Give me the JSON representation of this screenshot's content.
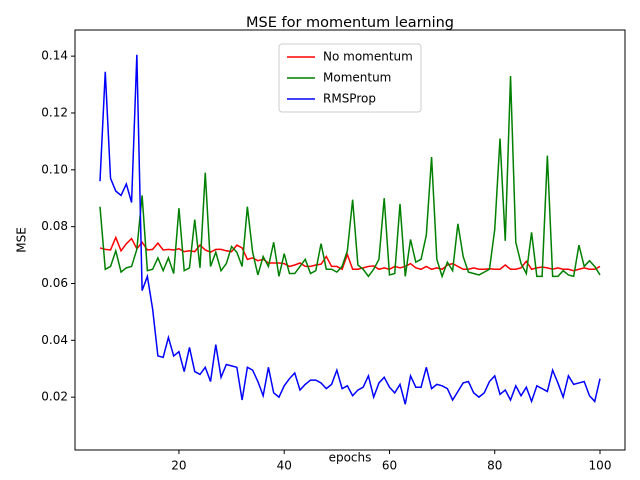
{
  "chart_data": {
    "type": "line",
    "title": "MSE for momentum learning",
    "xlabel": "epochs",
    "ylabel": "MSE",
    "x": [
      5,
      6,
      7,
      8,
      9,
      10,
      11,
      12,
      13,
      14,
      15,
      16,
      17,
      18,
      19,
      20,
      21,
      22,
      23,
      24,
      25,
      26,
      27,
      28,
      29,
      30,
      31,
      32,
      33,
      34,
      35,
      36,
      37,
      38,
      39,
      40,
      41,
      42,
      43,
      44,
      45,
      46,
      47,
      48,
      49,
      50,
      51,
      52,
      53,
      54,
      55,
      56,
      57,
      58,
      59,
      60,
      61,
      62,
      63,
      64,
      65,
      66,
      67,
      68,
      69,
      70,
      71,
      72,
      73,
      74,
      75,
      76,
      77,
      78,
      79,
      80,
      81,
      82,
      83,
      84,
      85,
      86,
      87,
      88,
      89,
      90,
      91,
      92,
      93,
      94,
      95,
      96,
      97,
      98,
      99,
      100
    ],
    "series": [
      {
        "name": "No momentum",
        "color": "#ff0000",
        "values": [
          0.0725,
          0.072,
          0.0718,
          0.0762,
          0.0715,
          0.074,
          0.0758,
          0.0722,
          0.0745,
          0.0718,
          0.072,
          0.0742,
          0.0718,
          0.072,
          0.0718,
          0.0722,
          0.0712,
          0.0715,
          0.0712,
          0.0735,
          0.0718,
          0.071,
          0.072,
          0.072,
          0.0715,
          0.0712,
          0.0735,
          0.0725,
          0.0685,
          0.069,
          0.068,
          0.0685,
          0.0672,
          0.0672,
          0.0672,
          0.067,
          0.066,
          0.0665,
          0.0672,
          0.066,
          0.066,
          0.0665,
          0.0668,
          0.0695,
          0.066,
          0.066,
          0.065,
          0.0702,
          0.065,
          0.065,
          0.0655,
          0.066,
          0.0662,
          0.065,
          0.0655,
          0.065,
          0.066,
          0.0655,
          0.066,
          0.067,
          0.0655,
          0.065,
          0.066,
          0.065,
          0.0655,
          0.065,
          0.0665,
          0.067,
          0.066,
          0.065,
          0.065,
          0.0655,
          0.065,
          0.065,
          0.0652,
          0.065,
          0.065,
          0.0665,
          0.065,
          0.065,
          0.0655,
          0.0678,
          0.065,
          0.0655,
          0.0658,
          0.0655,
          0.065,
          0.0655,
          0.065,
          0.065,
          0.0645,
          0.065,
          0.0655,
          0.065,
          0.065,
          0.066
        ]
      },
      {
        "name": "Momentum",
        "color": "#008000",
        "values": [
          0.087,
          0.065,
          0.066,
          0.0715,
          0.064,
          0.0655,
          0.066,
          0.072,
          0.091,
          0.0645,
          0.065,
          0.069,
          0.0645,
          0.069,
          0.0635,
          0.0865,
          0.0645,
          0.0655,
          0.0825,
          0.0655,
          0.099,
          0.066,
          0.071,
          0.0645,
          0.067,
          0.073,
          0.071,
          0.066,
          0.087,
          0.071,
          0.063,
          0.0695,
          0.066,
          0.0745,
          0.0625,
          0.0705,
          0.0635,
          0.0635,
          0.066,
          0.0685,
          0.0635,
          0.0645,
          0.074,
          0.065,
          0.065,
          0.064,
          0.066,
          0.0715,
          0.0895,
          0.0665,
          0.065,
          0.0625,
          0.065,
          0.0685,
          0.09,
          0.063,
          0.0635,
          0.088,
          0.0625,
          0.0755,
          0.0675,
          0.0685,
          0.077,
          0.1045,
          0.0685,
          0.0625,
          0.0675,
          0.0645,
          0.081,
          0.0695,
          0.064,
          0.0635,
          0.063,
          0.064,
          0.065,
          0.079,
          0.111,
          0.075,
          0.133,
          0.0745,
          0.067,
          0.0635,
          0.078,
          0.0625,
          0.0625,
          0.105,
          0.0625,
          0.0625,
          0.0645,
          0.063,
          0.0625,
          0.0735,
          0.066,
          0.068,
          0.066,
          0.063
        ]
      },
      {
        "name": "RMSProp",
        "color": "#0000ff",
        "values": [
          0.096,
          0.1345,
          0.097,
          0.0925,
          0.091,
          0.095,
          0.0885,
          0.1405,
          0.0575,
          0.0625,
          0.051,
          0.0345,
          0.034,
          0.041,
          0.0345,
          0.036,
          0.029,
          0.0375,
          0.029,
          0.028,
          0.0305,
          0.0255,
          0.0385,
          0.027,
          0.0315,
          0.031,
          0.0305,
          0.019,
          0.0305,
          0.0295,
          0.0255,
          0.0205,
          0.0305,
          0.0215,
          0.02,
          0.024,
          0.0265,
          0.0285,
          0.0225,
          0.0245,
          0.026,
          0.026,
          0.025,
          0.023,
          0.0245,
          0.0295,
          0.023,
          0.024,
          0.0205,
          0.0225,
          0.0235,
          0.0275,
          0.02,
          0.025,
          0.027,
          0.0235,
          0.0215,
          0.0245,
          0.0175,
          0.0275,
          0.0235,
          0.0235,
          0.0305,
          0.023,
          0.0245,
          0.024,
          0.023,
          0.019,
          0.022,
          0.025,
          0.0255,
          0.0215,
          0.02,
          0.0215,
          0.0255,
          0.0275,
          0.021,
          0.0225,
          0.019,
          0.024,
          0.0205,
          0.0235,
          0.0185,
          0.024,
          0.023,
          0.022,
          0.0295,
          0.025,
          0.02,
          0.0275,
          0.0245,
          0.025,
          0.0255,
          0.0205,
          0.0185,
          0.0265
        ]
      }
    ],
    "xlim": [
      0.25,
      104.75
    ],
    "ylim": [
      0.0014,
      0.1492
    ],
    "xticks": [
      20,
      40,
      60,
      80,
      100
    ],
    "yticks": [
      0.02,
      0.04,
      0.06,
      0.08,
      {
        "value": 0.1,
        "label": "0.10"
      },
      0.12,
      0.14
    ],
    "legend": "upper center"
  }
}
